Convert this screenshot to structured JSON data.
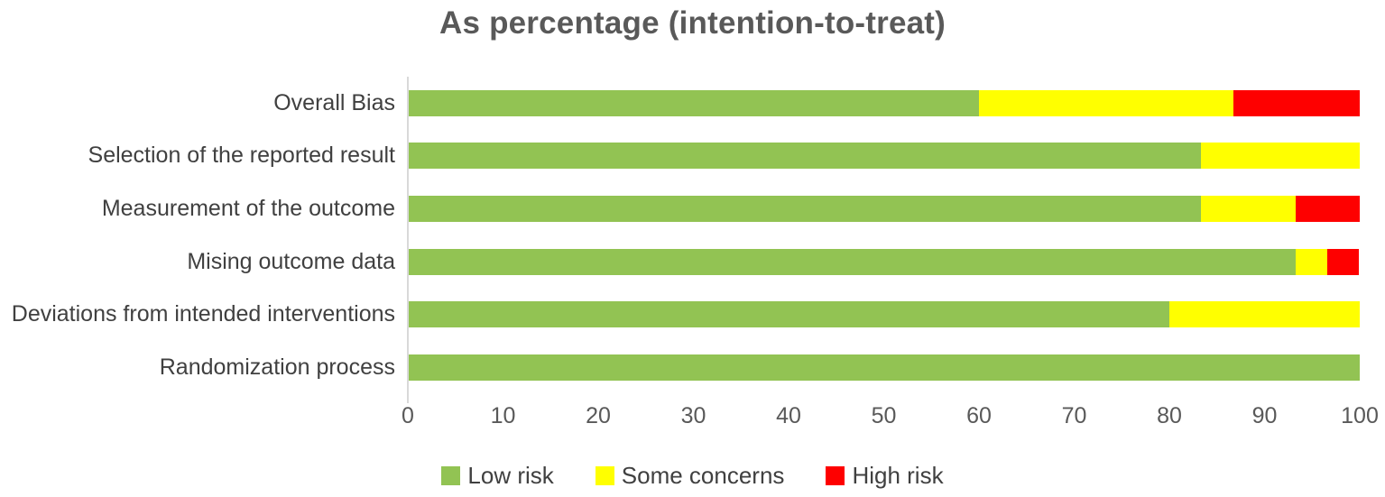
{
  "title": "As percentage (intention-to-treat)",
  "chart_data": {
    "type": "bar",
    "orientation": "horizontal",
    "stacked": true,
    "title": "As percentage (intention-to-treat)",
    "xlabel": "",
    "ylabel": "",
    "xlim": [
      0,
      100
    ],
    "x_ticks": [
      0,
      10,
      20,
      30,
      40,
      50,
      60,
      70,
      80,
      90,
      100
    ],
    "grid": false,
    "legend_position": "bottom",
    "categories": [
      "Overall Bias",
      "Selection of the reported result",
      "Measurement of the outcome",
      "Mising outcome data",
      "Deviations from intended interventions",
      "Randomization process"
    ],
    "series": [
      {
        "name": "Low risk",
        "color": "#92c353",
        "values": [
          60,
          83.3,
          83.3,
          93.3,
          80,
          100
        ]
      },
      {
        "name": "Some concerns",
        "color": "#ffff00",
        "values": [
          26.7,
          16.7,
          10,
          3.3,
          20,
          0
        ]
      },
      {
        "name": "High risk",
        "color": "#fe0000",
        "values": [
          13.3,
          0,
          6.7,
          3.3,
          0,
          0
        ]
      }
    ]
  },
  "colors": {
    "title_text": "#595959",
    "axis_text": "#595959",
    "category_text": "#404040",
    "axis_line": "#d9d9d9"
  }
}
